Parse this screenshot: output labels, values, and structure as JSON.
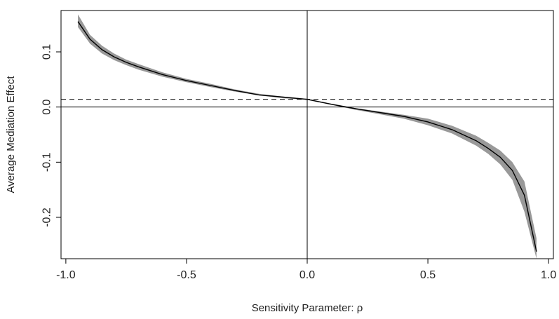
{
  "chart_data": {
    "type": "line",
    "title": "",
    "xlabel": "Sensitivity Parameter: ρ",
    "ylabel": "Average Mediation Effect",
    "xlim": [
      -1.02,
      1.02
    ],
    "ylim": [
      -0.275,
      0.175
    ],
    "xticks": [
      -1.0,
      -0.5,
      0.0,
      0.5,
      1.0
    ],
    "xtick_labels": [
      "-1.0",
      "-0.5",
      "0.0",
      "0.5",
      "1.0"
    ],
    "yticks": [
      -0.2,
      -0.1,
      0.0,
      0.1
    ],
    "ytick_labels": [
      "-0.2",
      "-0.1",
      "0.0",
      "0.1"
    ],
    "grid": false,
    "legend": "none",
    "reference_lines": {
      "horizontal_solid": 0.0,
      "horizontal_dashed": 0.014,
      "vertical_solid": 0.0
    },
    "colors": {
      "line": "#000000",
      "band": "#999999"
    },
    "series": [
      {
        "x": [
          -0.95,
          -0.9,
          -0.85,
          -0.8,
          -0.75,
          -0.7,
          -0.6,
          -0.5,
          -0.4,
          -0.3,
          -0.2,
          -0.1,
          0.0,
          0.1,
          0.2,
          0.3,
          0.4,
          0.5,
          0.6,
          0.7,
          0.75,
          0.8,
          0.85,
          0.9,
          0.95
        ],
        "values": [
          0.155,
          0.123,
          0.104,
          0.091,
          0.081,
          0.073,
          0.059,
          0.048,
          0.039,
          0.03,
          0.022,
          0.018,
          0.014,
          0.005,
          -0.003,
          -0.01,
          -0.017,
          -0.027,
          -0.041,
          -0.061,
          -0.075,
          -0.091,
          -0.115,
          -0.16,
          -0.262
        ],
        "lower": [
          0.145,
          0.115,
          0.097,
          0.085,
          0.076,
          0.068,
          0.055,
          0.045,
          0.036,
          0.028,
          0.021,
          0.016,
          0.013,
          0.004,
          -0.005,
          -0.013,
          -0.021,
          -0.033,
          -0.048,
          -0.07,
          -0.085,
          -0.104,
          -0.132,
          -0.19,
          -0.275
        ],
        "upper": [
          0.168,
          0.131,
          0.111,
          0.097,
          0.086,
          0.078,
          0.063,
          0.051,
          0.042,
          0.032,
          0.024,
          0.019,
          0.015,
          0.006,
          -0.002,
          -0.008,
          -0.014,
          -0.021,
          -0.034,
          -0.052,
          -0.065,
          -0.079,
          -0.1,
          -0.135,
          -0.238
        ]
      }
    ]
  }
}
